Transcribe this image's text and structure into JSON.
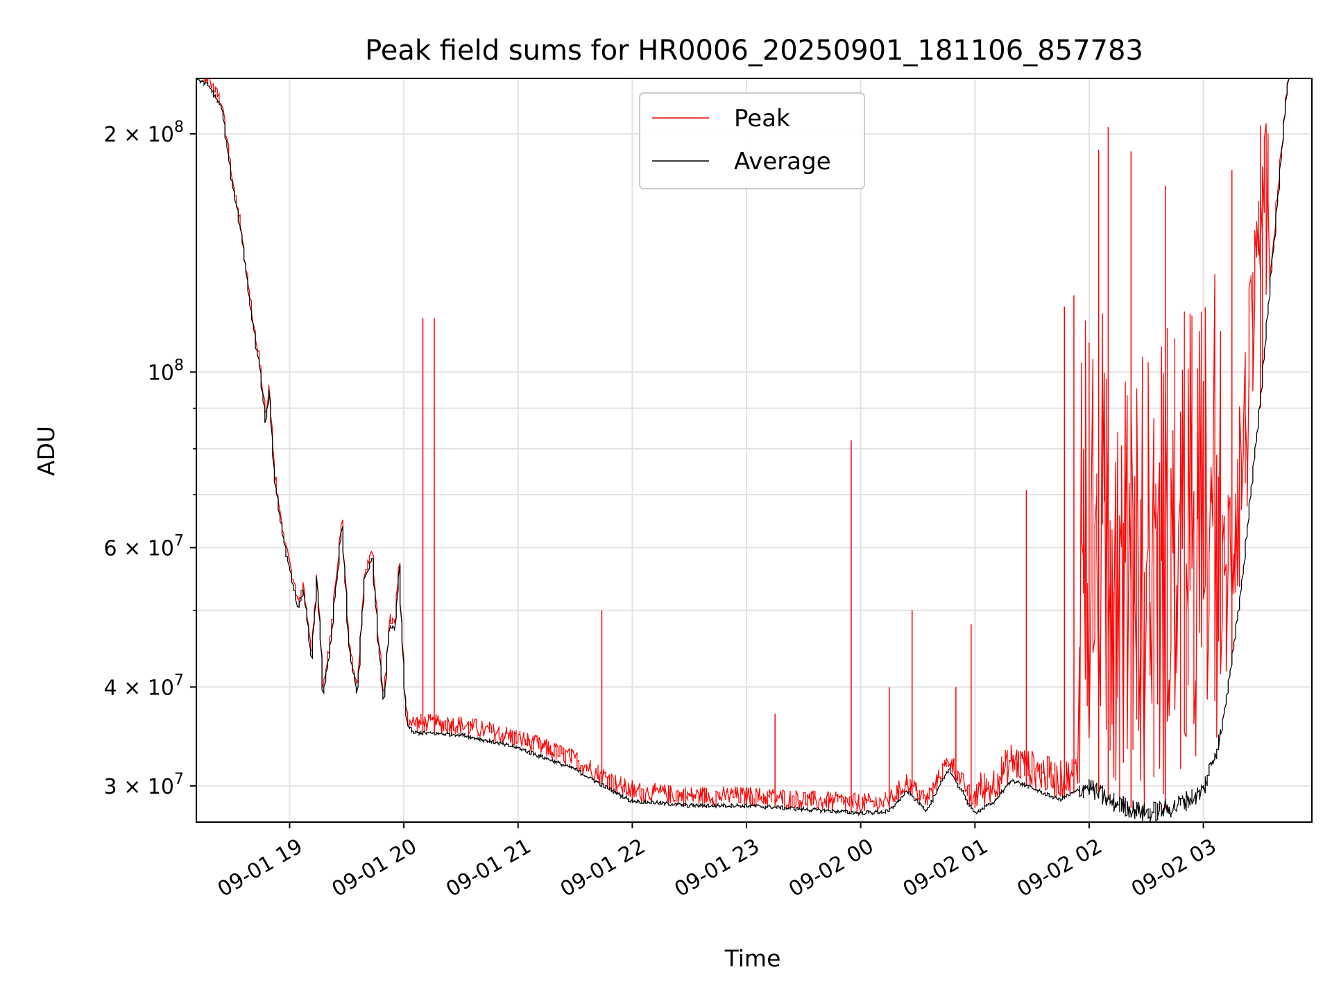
{
  "chart_data": {
    "type": "line",
    "title": "Peak field sums for HR0006_20250901_181106_857783",
    "xlabel": "Time",
    "ylabel": "ADU",
    "y_scale": "log",
    "ylim": [
      27000000,
      235000000
    ],
    "xlim": [
      "2025-09-01 18:11",
      "2025-09-02 03:57"
    ],
    "grid": true,
    "legend_position": "top-center",
    "x_ticks": [
      {
        "t": "2025-09-01 19:00",
        "label": "09-01 19"
      },
      {
        "t": "2025-09-01 20:00",
        "label": "09-01 20"
      },
      {
        "t": "2025-09-01 21:00",
        "label": "09-01 21"
      },
      {
        "t": "2025-09-01 22:00",
        "label": "09-01 22"
      },
      {
        "t": "2025-09-01 23:00",
        "label": "09-01 23"
      },
      {
        "t": "2025-09-02 00:00",
        "label": "09-02 00"
      },
      {
        "t": "2025-09-02 01:00",
        "label": "09-02 01"
      },
      {
        "t": "2025-09-02 02:00",
        "label": "09-02 02"
      },
      {
        "t": "2025-09-02 03:00",
        "label": "09-02 03"
      }
    ],
    "y_ticks": [
      {
        "v": 30000000,
        "base": "3 × 10",
        "exp": "7"
      },
      {
        "v": 40000000,
        "base": "4 × 10",
        "exp": "7"
      },
      {
        "v": 60000000,
        "base": "6 × 10",
        "exp": "7"
      },
      {
        "v": 100000000,
        "base": "10",
        "exp": "8"
      },
      {
        "v": 200000000,
        "base": "2 × 10",
        "exp": "8"
      }
    ],
    "y_minor_ticks": [
      50000000,
      70000000,
      80000000,
      90000000
    ],
    "series": [
      {
        "name": "Average",
        "color": "#000000",
        "points": [
          [
            "2025-09-01 18:11",
            235000000
          ],
          [
            "2025-09-01 18:18",
            230000000
          ],
          [
            "2025-09-01 18:25",
            215000000
          ],
          [
            "2025-09-01 18:30",
            175000000
          ],
          [
            "2025-09-01 18:35",
            150000000
          ],
          [
            "2025-09-01 18:40",
            120000000
          ],
          [
            "2025-09-01 18:45",
            100000000
          ],
          [
            "2025-09-01 18:48",
            86000000
          ],
          [
            "2025-09-01 18:50",
            95000000
          ],
          [
            "2025-09-01 18:52",
            75000000
          ],
          [
            "2025-09-01 18:56",
            64000000
          ],
          [
            "2025-09-01 19:00",
            57000000
          ],
          [
            "2025-09-01 19:05",
            50000000
          ],
          [
            "2025-09-01 19:08",
            53000000
          ],
          [
            "2025-09-01 19:12",
            43000000
          ],
          [
            "2025-09-01 19:15",
            55000000
          ],
          [
            "2025-09-01 19:18",
            39000000
          ],
          [
            "2025-09-01 19:22",
            45000000
          ],
          [
            "2025-09-01 19:25",
            54000000
          ],
          [
            "2025-09-01 19:28",
            64000000
          ],
          [
            "2025-09-01 19:32",
            44000000
          ],
          [
            "2025-09-01 19:36",
            39000000
          ],
          [
            "2025-09-01 19:40",
            55000000
          ],
          [
            "2025-09-01 19:44",
            58000000
          ],
          [
            "2025-09-01 19:47",
            46000000
          ],
          [
            "2025-09-01 19:50",
            38000000
          ],
          [
            "2025-09-01 19:53",
            48000000
          ],
          [
            "2025-09-01 19:56",
            47000000
          ],
          [
            "2025-09-01 19:58",
            57000000
          ],
          [
            "2025-09-01 20:00",
            43000000
          ],
          [
            "2025-09-01 20:02",
            36000000
          ],
          [
            "2025-09-01 20:05",
            35000000
          ],
          [
            "2025-09-01 20:30",
            34800000
          ],
          [
            "2025-09-01 21:00",
            33500000
          ],
          [
            "2025-09-01 21:30",
            31500000
          ],
          [
            "2025-09-01 21:45",
            30000000
          ],
          [
            "2025-09-01 22:00",
            28700000
          ],
          [
            "2025-09-01 22:30",
            28300000
          ],
          [
            "2025-09-01 23:00",
            28300000
          ],
          [
            "2025-09-01 23:30",
            28000000
          ],
          [
            "2025-09-02 00:00",
            27700000
          ],
          [
            "2025-09-02 00:15",
            27800000
          ],
          [
            "2025-09-02 00:25",
            29500000
          ],
          [
            "2025-09-02 00:35",
            27900000
          ],
          [
            "2025-09-02 00:47",
            31500000
          ],
          [
            "2025-09-02 01:00",
            27700000
          ],
          [
            "2025-09-02 01:10",
            28500000
          ],
          [
            "2025-09-02 01:20",
            30500000
          ],
          [
            "2025-09-02 01:30",
            29800000
          ],
          [
            "2025-09-02 01:45",
            28800000
          ],
          [
            "2025-09-02 02:00",
            30000000
          ],
          [
            "2025-09-02 02:10",
            28800000
          ],
          [
            "2025-09-02 02:30",
            27700000
          ],
          [
            "2025-09-02 02:45",
            28200000
          ],
          [
            "2025-09-02 03:00",
            29500000
          ],
          [
            "2025-09-02 03:10",
            35000000
          ],
          [
            "2025-09-02 03:20",
            52000000
          ],
          [
            "2025-09-02 03:30",
            90000000
          ],
          [
            "2025-09-02 03:38",
            150000000
          ],
          [
            "2025-09-02 03:45",
            235000000
          ]
        ]
      },
      {
        "name": "Peak",
        "color": "#ff0000",
        "spikes": [
          [
            "2025-09-01 20:10",
            117000000
          ],
          [
            "2025-09-01 20:16",
            117000000
          ],
          [
            "2025-09-01 21:44",
            50000000
          ],
          [
            "2025-09-01 22:00",
            30500000
          ],
          [
            "2025-09-01 23:15",
            37000000
          ],
          [
            "2025-09-01 23:55",
            82000000
          ],
          [
            "2025-09-02 00:15",
            40000000
          ],
          [
            "2025-09-02 00:27",
            50000000
          ],
          [
            "2025-09-02 00:50",
            40000000
          ],
          [
            "2025-09-02 00:58",
            48000000
          ],
          [
            "2025-09-02 01:27",
            71000000
          ],
          [
            "2025-09-02 01:47",
            121000000
          ],
          [
            "2025-09-02 01:52",
            125000000
          ],
          [
            "2025-09-02 02:05",
            191000000
          ],
          [
            "2025-09-02 02:10",
            204000000
          ],
          [
            "2025-09-02 02:22",
            190000000
          ],
          [
            "2025-09-02 02:40",
            172000000
          ],
          [
            "2025-09-02 03:15",
            180000000
          ],
          [
            "2025-09-02 03:30",
            205000000
          ]
        ]
      }
    ]
  }
}
